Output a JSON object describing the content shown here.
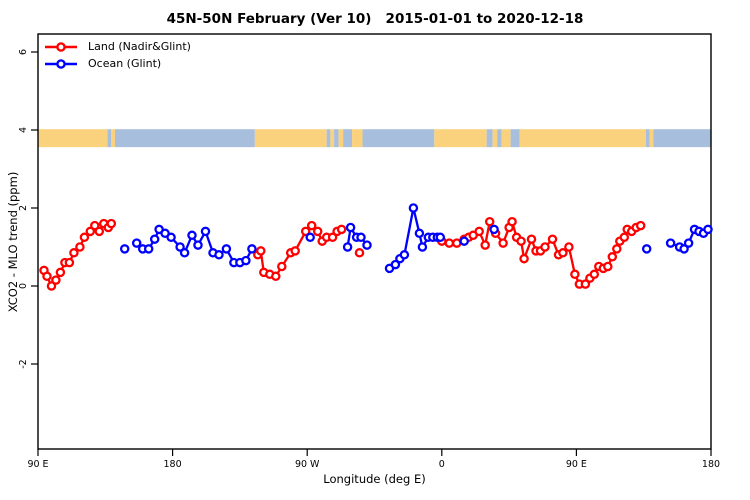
{
  "chart_data": {
    "type": "line",
    "title": "45N-50N February (Ver 10)   2015-01-01 to 2020-12-18",
    "xlabel": "Longitude (deg E)",
    "ylabel": "XCO2 - MLO trend (ppm)",
    "x_range": [
      90,
      540
    ],
    "y_range": [
      -4.2,
      6.5
    ],
    "grid": "off",
    "legend_position": "top-left-inside",
    "x_ticks": [
      {
        "lon": 90,
        "label": "90 E"
      },
      {
        "lon": 180,
        "label": "180"
      },
      {
        "lon": 270,
        "label": "90 W"
      },
      {
        "lon": 360,
        "label": "0"
      },
      {
        "lon": 450,
        "label": "90 E"
      },
      {
        "lon": 540,
        "label": "180"
      }
    ],
    "y_ticks": [
      {
        "value": -2,
        "label": "-2"
      },
      {
        "value": 0,
        "label": "0"
      },
      {
        "value": 2,
        "label": "2"
      },
      {
        "value": 4,
        "label": "4"
      },
      {
        "value": 6,
        "label": "6"
      }
    ],
    "legend": [
      {
        "name": "Land (Nadir&Glint)",
        "color": "#ff0000"
      },
      {
        "name": "Ocean (Glint)",
        "color": "#0000ff"
      }
    ],
    "map_band": {
      "description": "latitude-band land/ocean strip drawn at y=4",
      "v_top": 4.02,
      "v_bottom": 3.56,
      "land_color": "#fad27e",
      "ocean_color": "#a7bedc",
      "segments": [
        {
          "from": 90,
          "to": 136.5,
          "type": "land"
        },
        {
          "from": 136.5,
          "to": 139,
          "type": "ocean"
        },
        {
          "from": 139,
          "to": 141.5,
          "type": "land"
        },
        {
          "from": 141.5,
          "to": 235,
          "type": "ocean"
        },
        {
          "from": 235,
          "to": 283,
          "type": "land"
        },
        {
          "from": 283,
          "to": 285.5,
          "type": "ocean"
        },
        {
          "from": 285.5,
          "to": 288,
          "type": "land"
        },
        {
          "from": 288,
          "to": 291,
          "type": "ocean"
        },
        {
          "from": 291,
          "to": 294,
          "type": "land"
        },
        {
          "from": 294,
          "to": 300,
          "type": "ocean"
        },
        {
          "from": 300,
          "to": 307,
          "type": "land"
        },
        {
          "from": 307,
          "to": 355,
          "type": "ocean"
        },
        {
          "from": 355,
          "to": 390,
          "type": "land"
        },
        {
          "from": 390,
          "to": 394,
          "type": "ocean"
        },
        {
          "from": 394,
          "to": 397,
          "type": "land"
        },
        {
          "from": 397,
          "to": 400,
          "type": "ocean"
        },
        {
          "from": 400,
          "to": 406,
          "type": "land"
        },
        {
          "from": 406,
          "to": 412,
          "type": "ocean"
        },
        {
          "from": 412,
          "to": 496.5,
          "type": "land"
        },
        {
          "from": 496.5,
          "to": 499,
          "type": "ocean"
        },
        {
          "from": 499,
          "to": 501.5,
          "type": "land"
        },
        {
          "from": 501.5,
          "to": 540,
          "type": "ocean"
        }
      ]
    },
    "series": [
      {
        "name": "Land (Nadir&Glint)",
        "color": "#ff0000",
        "marker": "open-circle",
        "segments": [
          [
            [
              94,
              0.4
            ],
            [
              96,
              0.25
            ],
            [
              99,
              0.0
            ],
            [
              102,
              0.15
            ],
            [
              105,
              0.35
            ],
            [
              108,
              0.6
            ],
            [
              111,
              0.6
            ],
            [
              114,
              0.85
            ],
            [
              118,
              1.0
            ],
            [
              121,
              1.25
            ],
            [
              125,
              1.4
            ],
            [
              128,
              1.55
            ],
            [
              131,
              1.4
            ],
            [
              134,
              1.6
            ],
            [
              137,
              1.5
            ],
            [
              139,
              1.6
            ]
          ],
          [
            [
              237,
              0.8
            ],
            [
              239,
              0.9
            ],
            [
              241,
              0.35
            ],
            [
              245,
              0.3
            ],
            [
              249,
              0.25
            ],
            [
              253,
              0.5
            ],
            [
              259,
              0.85
            ],
            [
              262,
              0.9
            ],
            [
              269,
              1.4
            ],
            [
              273,
              1.55
            ],
            [
              277,
              1.4
            ],
            [
              280,
              1.15
            ],
            [
              283,
              1.25
            ],
            [
              287,
              1.25
            ],
            [
              290,
              1.4
            ],
            [
              293,
              1.45
            ]
          ],
          [
            [
              305,
              0.85
            ]
          ],
          [
            [
              360,
              1.15
            ],
            [
              365,
              1.1
            ],
            [
              370,
              1.1
            ],
            [
              375,
              1.2
            ],
            [
              378,
              1.25
            ],
            [
              381,
              1.3
            ],
            [
              385,
              1.4
            ],
            [
              389,
              1.05
            ],
            [
              392,
              1.65
            ],
            [
              396,
              1.35
            ],
            [
              401,
              1.1
            ],
            [
              405,
              1.5
            ],
            [
              407,
              1.65
            ],
            [
              410,
              1.25
            ],
            [
              413,
              1.15
            ],
            [
              415,
              0.7
            ],
            [
              420,
              1.2
            ],
            [
              423,
              0.9
            ],
            [
              426,
              0.9
            ],
            [
              429,
              1.0
            ],
            [
              434,
              1.2
            ],
            [
              438,
              0.8
            ],
            [
              441,
              0.85
            ],
            [
              445,
              1.0
            ],
            [
              449,
              0.3
            ],
            [
              452,
              0.05
            ],
            [
              456,
              0.05
            ],
            [
              459,
              0.2
            ],
            [
              462,
              0.3
            ],
            [
              465,
              0.5
            ],
            [
              468,
              0.45
            ],
            [
              471,
              0.5
            ],
            [
              474,
              0.75
            ],
            [
              477,
              0.95
            ],
            [
              479,
              1.15
            ],
            [
              482,
              1.25
            ],
            [
              484,
              1.45
            ],
            [
              487,
              1.4
            ],
            [
              490,
              1.5
            ],
            [
              493,
              1.55
            ]
          ]
        ]
      },
      {
        "name": "Ocean (Glint)",
        "color": "#0000ff",
        "marker": "open-circle",
        "segments": [
          [
            [
              148,
              0.95
            ]
          ],
          [
            [
              156,
              1.1
            ],
            [
              160,
              0.95
            ],
            [
              164,
              0.95
            ],
            [
              168,
              1.2
            ],
            [
              171,
              1.45
            ],
            [
              175,
              1.35
            ],
            [
              179,
              1.25
            ],
            [
              185,
              1.0
            ],
            [
              188,
              0.85
            ],
            [
              193,
              1.3
            ],
            [
              197,
              1.05
            ],
            [
              202,
              1.4
            ],
            [
              207,
              0.85
            ],
            [
              211,
              0.8
            ],
            [
              216,
              0.95
            ],
            [
              221,
              0.6
            ],
            [
              225,
              0.6
            ],
            [
              229,
              0.65
            ],
            [
              233,
              0.95
            ]
          ],
          [
            [
              272,
              1.25
            ]
          ],
          [
            [
              297,
              1.0
            ],
            [
              299,
              1.5
            ],
            [
              303,
              1.25
            ],
            [
              306,
              1.25
            ],
            [
              310,
              1.05
            ]
          ],
          [
            [
              325,
              0.45
            ],
            [
              329,
              0.55
            ],
            [
              332,
              0.7
            ],
            [
              335,
              0.8
            ],
            [
              341,
              2.0
            ],
            [
              345,
              1.35
            ],
            [
              347,
              1.0
            ],
            [
              351,
              1.25
            ],
            [
              354,
              1.25
            ],
            [
              357,
              1.25
            ],
            [
              359,
              1.25
            ]
          ],
          [
            [
              375,
              1.15
            ]
          ],
          [
            [
              395,
              1.45
            ]
          ],
          [
            [
              497,
              0.95
            ]
          ],
          [
            [
              513,
              1.1
            ],
            [
              519,
              1.0
            ],
            [
              522,
              0.95
            ],
            [
              525,
              1.1
            ],
            [
              529,
              1.45
            ],
            [
              532,
              1.4
            ],
            [
              535,
              1.35
            ],
            [
              538,
              1.45
            ]
          ]
        ]
      }
    ]
  }
}
